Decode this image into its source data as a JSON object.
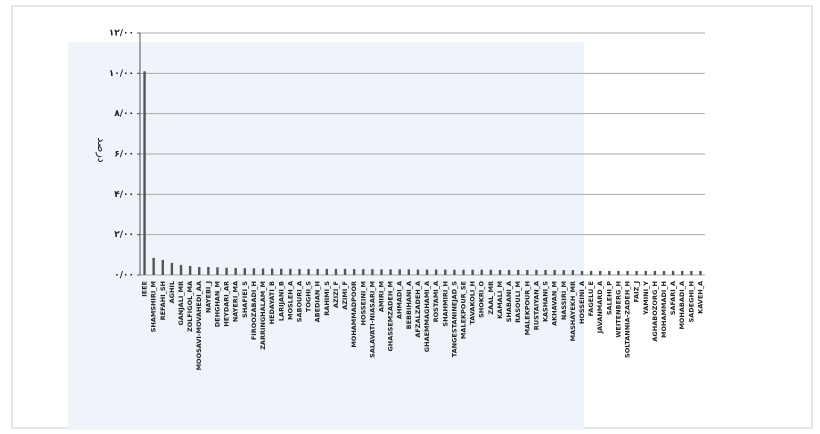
{
  "chart_data": {
    "type": "bar",
    "y_label": "درصد",
    "color": "#555555",
    "grid": true,
    "categories": [
      "IEEE",
      "SHAMSHIRI_M",
      "REFAHI_SH",
      "AGHIL",
      "GANJALI_MR",
      "ZOLFIGOL_MA",
      "MOOSAVI-MOVAHEDI_AA",
      "NAYEBI_J",
      "DEHGHAN_M",
      "HEYDARI_AR",
      "NAYERI_MA",
      "SHAFIEI_S",
      "FIROOZABADI_H",
      "ZARRINGHALAM_M",
      "HEDAYATI_B",
      "LARIJANI_B",
      "MOSLEH_A",
      "SABOURI_A",
      "TOGHI_S",
      "ABEDIAN_H",
      "RAHIMI_S",
      "AZIZI_F",
      "AZIMI_F",
      "MOHAMMADPOOR",
      "HOSSEINI_M",
      "SALAVATI-NIASARI_M",
      "AMIRI_M",
      "GHASSEMZADEH_M",
      "AHMADI_A",
      "BEBBIHANI_A",
      "AFZALZADEH_A",
      "GHAEMMAGHAMI_A",
      "ROSTAMI_A",
      "SHAHMIRI_H",
      "TANGESTANINEJAD_S",
      "MALEKPOUR_SE",
      "TAVAKOLI_H",
      "SHOKRI_O",
      "ZAAL_MR",
      "KAMALI_M",
      "SHABANI_A",
      "RASOULI_M",
      "MALEKPOUR_H",
      "RUSTAIYAN_A",
      "KASHANI_S",
      "AKHAVAN_M",
      "NASSIRI_M",
      "MASHAYEKH_MR",
      "HOSSEINI_A",
      "FAGELU_E",
      "JAVANMARD_A",
      "SALEHI_P",
      "WEITENBERG_H",
      "SOLTANNIA-ZADEH_H",
      "FAIZ_J",
      "YAMINI_Y",
      "AGHABOZORG_H",
      "MOHAMMADI_H",
      "SAFARI_A",
      "MOHABADI_A",
      "SADEGHI_H",
      "KAVEH_A"
    ],
    "values": [
      10.1,
      0.85,
      0.75,
      0.6,
      0.5,
      0.45,
      0.4,
      0.4,
      0.38,
      0.36,
      0.35,
      0.34,
      0.33,
      0.32,
      0.32,
      0.31,
      0.31,
      0.3,
      0.3,
      0.3,
      0.3,
      0.3,
      0.3,
      0.29,
      0.29,
      0.29,
      0.28,
      0.28,
      0.28,
      0.28,
      0.27,
      0.27,
      0.27,
      0.27,
      0.26,
      0.26,
      0.26,
      0.26,
      0.26,
      0.25,
      0.25,
      0.25,
      0.25,
      0.25,
      0.25,
      0.25,
      0.24,
      0.24,
      0.2,
      0.2,
      0.2,
      0.2,
      0.2,
      0.2,
      0.2,
      0.2,
      0.2,
      0.2,
      0.2,
      0.2,
      0.2,
      0.2
    ],
    "ylim": [
      0,
      12
    ],
    "yticks": [
      {
        "value": 0,
        "label": "۰/۰۰"
      },
      {
        "value": 2,
        "label": "۲/۰۰"
      },
      {
        "value": 4,
        "label": "۴/۰۰"
      },
      {
        "value": 6,
        "label": "۶/۰۰"
      },
      {
        "value": 8,
        "label": "۸/۰۰"
      },
      {
        "value": 10,
        "label": "۱۰/۰۰"
      },
      {
        "value": 12,
        "label": "۱۲/۰۰"
      }
    ]
  }
}
